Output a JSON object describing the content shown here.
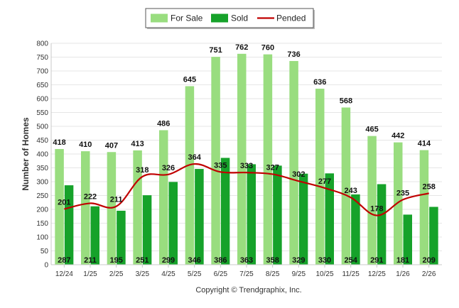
{
  "chart_data": {
    "type": "bar",
    "categories": [
      "12/24",
      "1/25",
      "2/25",
      "3/25",
      "4/25",
      "5/25",
      "6/25",
      "7/25",
      "8/25",
      "9/25",
      "10/25",
      "11/25",
      "12/25",
      "1/26",
      "2/26"
    ],
    "series": [
      {
        "name": "For Sale",
        "type": "bar",
        "color": "#99dd7f",
        "values": [
          418,
          410,
          407,
          413,
          486,
          645,
          751,
          762,
          760,
          736,
          636,
          568,
          465,
          442,
          414
        ]
      },
      {
        "name": "Sold",
        "type": "bar",
        "color": "#16a22a",
        "values": [
          287,
          211,
          195,
          251,
          299,
          346,
          386,
          363,
          358,
          329,
          330,
          254,
          291,
          181,
          209
        ]
      },
      {
        "name": "Pended",
        "type": "line",
        "color": "#c00000",
        "values": [
          201,
          222,
          211,
          318,
          326,
          364,
          335,
          333,
          327,
          302,
          277,
          243,
          178,
          235,
          258
        ]
      }
    ],
    "ylabel": "Number of Homes",
    "xlabel": "",
    "ylim": [
      0,
      800
    ],
    "yticks": [
      "0",
      "50",
      "100",
      "150",
      "200",
      "250",
      "300",
      "350",
      "400",
      "450",
      "500",
      "550",
      "600",
      "650",
      "700",
      "750",
      "800"
    ],
    "grid": true,
    "legend_position": "top-center"
  },
  "copyright": "Copyright © Trendgraphix, Inc."
}
